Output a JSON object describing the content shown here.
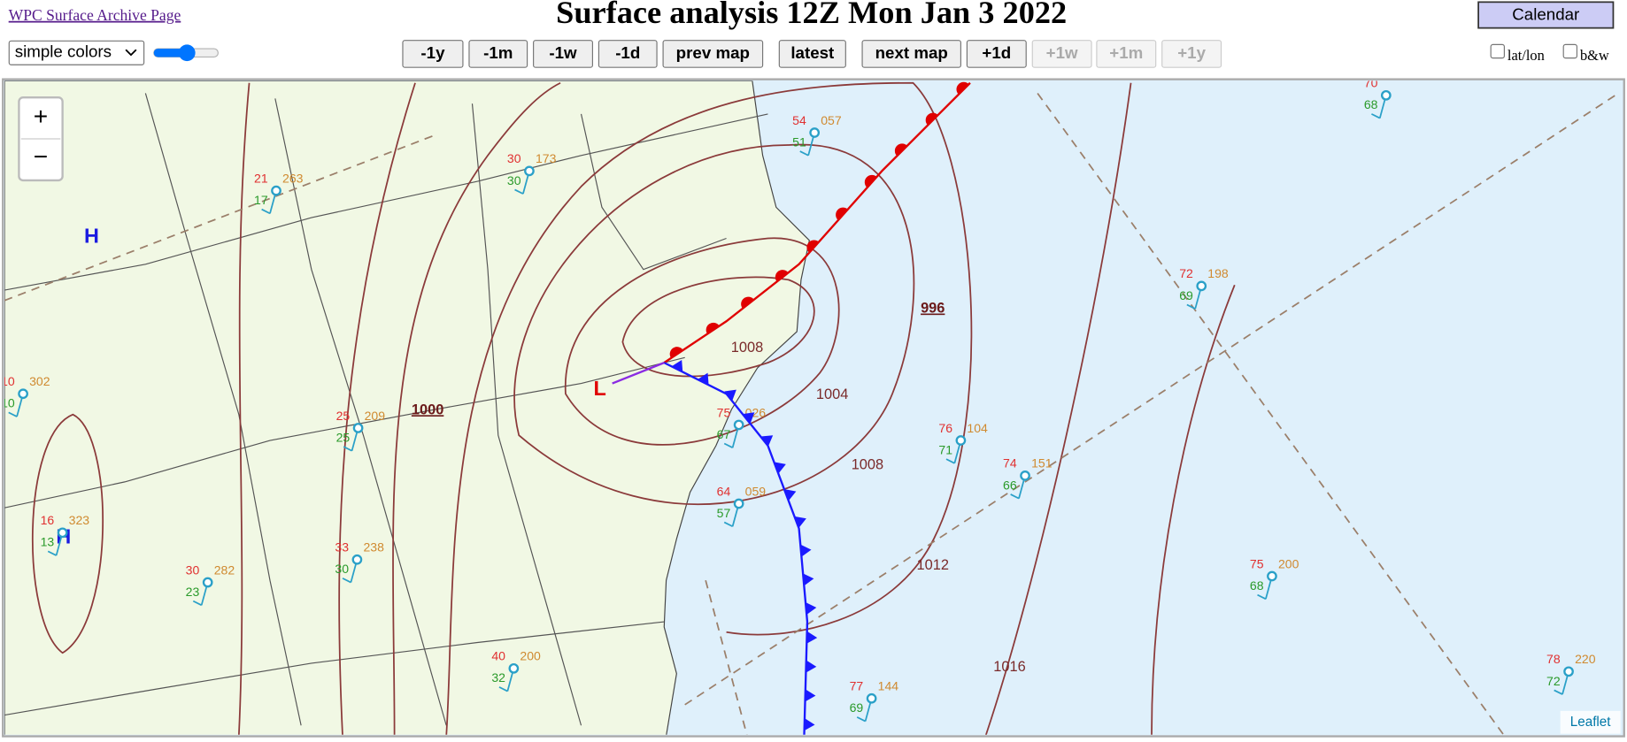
{
  "header": {
    "archive_link": "WPC Surface Archive Page",
    "title": "Surface analysis 12Z Mon Jan 3 2022",
    "calendar_button": "Calendar"
  },
  "controls": {
    "color_select": "simple colors",
    "buttons": [
      {
        "label": "-1y",
        "enabled": true
      },
      {
        "label": "-1m",
        "enabled": true
      },
      {
        "label": "-1w",
        "enabled": true
      },
      {
        "label": "-1d",
        "enabled": true
      },
      {
        "label": "prev map",
        "enabled": true
      },
      {
        "label": "latest",
        "enabled": true
      },
      {
        "label": "next map",
        "enabled": true
      },
      {
        "label": "+1d",
        "enabled": true
      },
      {
        "label": "+1w",
        "enabled": false
      },
      {
        "label": "+1m",
        "enabled": false
      },
      {
        "label": "+1y",
        "enabled": false
      }
    ],
    "checkboxes": [
      "lat/lon",
      "b&w"
    ]
  },
  "map": {
    "zoom_in": "+",
    "zoom_out": "−",
    "attribution": "Leaflet",
    "isobar_labels": [
      "996",
      "1000",
      "1004",
      "1008",
      "1008",
      "1012",
      "1016"
    ],
    "pressure_centers": [
      "H",
      "H",
      "L"
    ],
    "stations": [
      {
        "temp": "70",
        "pressure": "",
        "dewpoint": "68"
      },
      {
        "temp": "72",
        "pressure": "198",
        "dewpoint": "69"
      },
      {
        "temp": "76",
        "pressure": "104",
        "dewpoint": "71"
      },
      {
        "temp": "74",
        "pressure": "151",
        "dewpoint": "66"
      },
      {
        "temp": "75",
        "pressure": "200",
        "dewpoint": "68"
      },
      {
        "temp": "78",
        "pressure": "220",
        "dewpoint": "72"
      },
      {
        "temp": "77",
        "pressure": "144",
        "dewpoint": "69"
      },
      {
        "temp": "75",
        "pressure": "026",
        "dewpoint": "67"
      },
      {
        "temp": "54",
        "pressure": "057",
        "dewpoint": "51"
      },
      {
        "temp": "64",
        "pressure": "059",
        "dewpoint": "57"
      },
      {
        "temp": "30",
        "pressure": "173",
        "dewpoint": "30"
      },
      {
        "temp": "25",
        "pressure": "209",
        "dewpoint": "25"
      },
      {
        "temp": "33",
        "pressure": "238",
        "dewpoint": "30"
      },
      {
        "temp": "40",
        "pressure": "200",
        "dewpoint": "32"
      },
      {
        "temp": "30",
        "pressure": "282",
        "dewpoint": "23"
      },
      {
        "temp": "10",
        "pressure": "302",
        "dewpoint": "10"
      },
      {
        "temp": "16",
        "pressure": "323",
        "dewpoint": "13"
      },
      {
        "temp": "21",
        "pressure": "263",
        "dewpoint": "17"
      }
    ]
  }
}
